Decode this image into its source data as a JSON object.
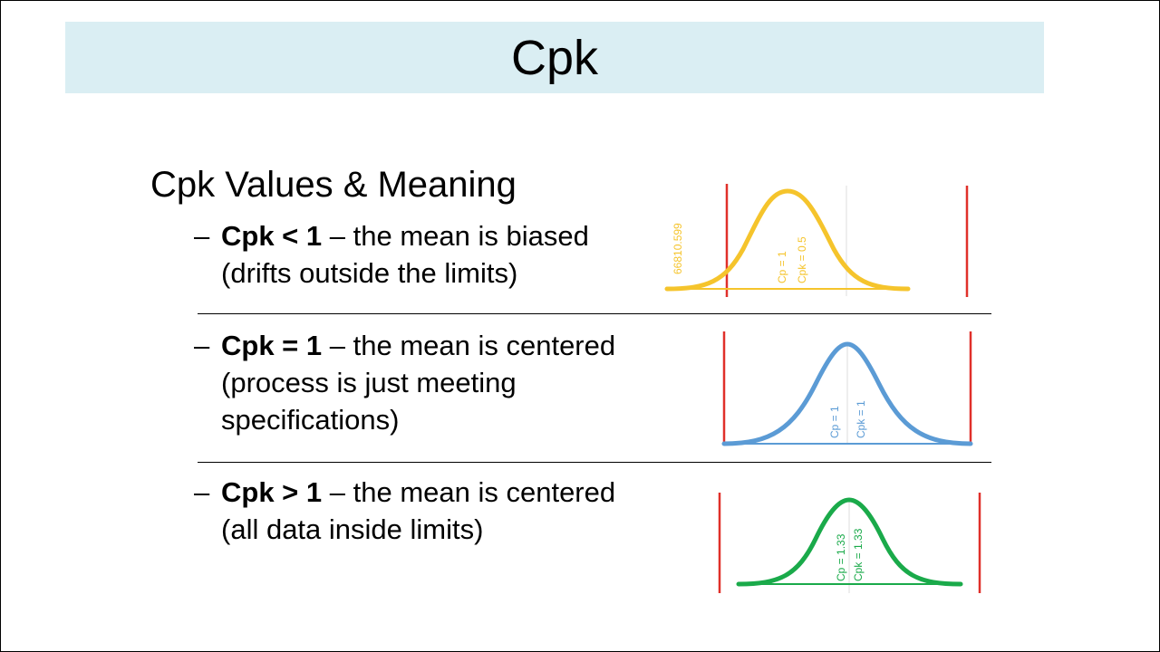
{
  "slide": {
    "title": "Cpk",
    "subtitle": "Cpk Values & Meaning"
  },
  "bullets": [
    {
      "dash": "–",
      "bold": "Cpk < 1",
      "rest": " – the mean is biased (drifts outside the limits)"
    },
    {
      "dash": "–",
      "bold": "Cpk = 1",
      "rest": " – the mean is centered (process is just meeting specifications)"
    },
    {
      "dash": "–",
      "bold": "Cpk > 1",
      "rest": " – the mean is centered (all data inside limits)"
    }
  ],
  "curves": [
    {
      "color": "#f5c42c",
      "limit_color": "#e0302a",
      "labels": [
        "66810.599",
        "Cp = 1",
        "Cpk = 0.5"
      ]
    },
    {
      "color": "#5b9bd5",
      "limit_color": "#e0302a",
      "labels": [
        "Cp = 1",
        "Cpk = 1"
      ]
    },
    {
      "color": "#1aaa4a",
      "limit_color": "#e0302a",
      "labels": [
        "Cp = 1.33",
        "Cpk = 1.33"
      ]
    }
  ]
}
